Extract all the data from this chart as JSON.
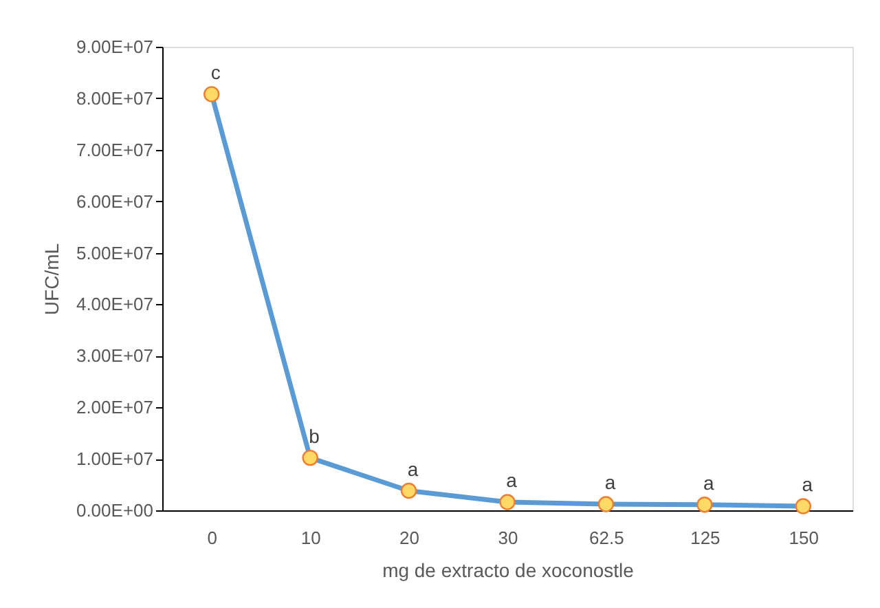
{
  "chart_data": {
    "type": "line",
    "xlabel": "mg de extracto de xoconostle",
    "ylabel": "UFC/mL",
    "categories": [
      "0",
      "10",
      "20",
      "30",
      "62.5",
      "125",
      "150"
    ],
    "series": [
      {
        "color": "#5b9bd5",
        "values": [
          80800000,
          10200000,
          3800000,
          1600000,
          1200000,
          1100000,
          800000
        ]
      }
    ],
    "ylim": [
      0,
      90000000
    ],
    "yticks": [
      {
        "value": 0,
        "label": "0.00E+00"
      },
      {
        "value": 10000000,
        "label": "1.00E+07"
      },
      {
        "value": 20000000,
        "label": "2.00E+07"
      },
      {
        "value": 30000000,
        "label": "3.00E+07"
      },
      {
        "value": 40000000,
        "label": "4.00E+07"
      },
      {
        "value": 50000000,
        "label": "5.00E+07"
      },
      {
        "value": 60000000,
        "label": "6.00E+07"
      },
      {
        "value": 70000000,
        "label": "7.00E+07"
      },
      {
        "value": 80000000,
        "label": "8.00E+07"
      },
      {
        "value": 90000000,
        "label": "9.00E+07"
      }
    ],
    "marker": "circle",
    "line_style": "solid",
    "grid": false,
    "annotations": [
      {
        "text": "c",
        "x": "0",
        "y": 80800000
      },
      {
        "text": "b",
        "x": "10",
        "y": 10200000
      },
      {
        "text": "a",
        "x": "20",
        "y": 3800000
      },
      {
        "text": "a",
        "x": "30",
        "y": 1600000
      },
      {
        "text": "a",
        "x": "62.5",
        "y": 1200000
      },
      {
        "text": "a",
        "x": "125",
        "y": 1100000
      },
      {
        "text": "a",
        "x": "150",
        "y": 800000
      }
    ]
  }
}
